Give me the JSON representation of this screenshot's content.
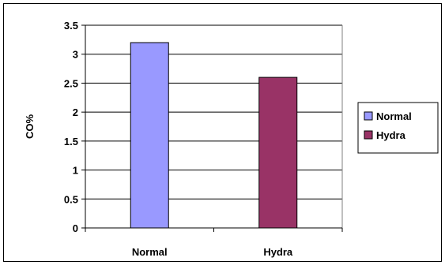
{
  "chart_data": {
    "type": "bar",
    "categories": [
      "Normal",
      "Hydra"
    ],
    "series": [
      {
        "name": "Normal",
        "values": [
          3.2,
          null
        ],
        "color": "#9999ff"
      },
      {
        "name": "Hydra",
        "values": [
          null,
          2.6
        ],
        "color": "#993366"
      }
    ],
    "title": "",
    "xlabel": "",
    "ylabel": "CO%",
    "ylim": [
      0,
      3.5
    ],
    "yticks": [
      "0",
      "0.5",
      "1",
      "1.5",
      "2",
      "2.5",
      "3",
      "3.5"
    ],
    "grid": true,
    "legend_position": "right",
    "plot_background": "#ffffff"
  }
}
